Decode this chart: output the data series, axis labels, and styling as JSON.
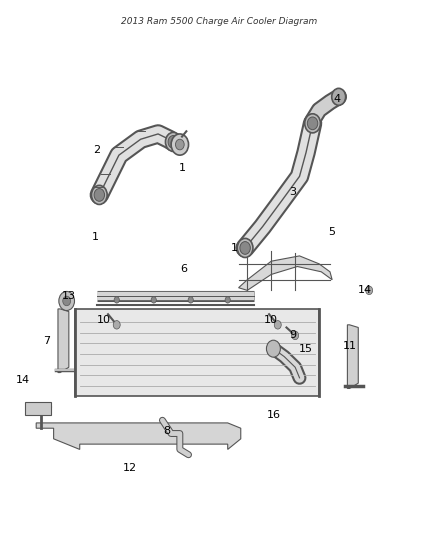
{
  "title": "2013 Ram 5500 Charge Air Cooler Diagram",
  "bg_color": "#ffffff",
  "line_color": "#555555",
  "label_color": "#000000",
  "fig_width": 4.38,
  "fig_height": 5.33,
  "dpi": 100,
  "labels": {
    "1a": [
      0.415,
      0.685,
      "1"
    ],
    "1b": [
      0.215,
      0.555,
      "1"
    ],
    "1c": [
      0.535,
      0.535,
      "1"
    ],
    "2": [
      0.22,
      0.72,
      "2"
    ],
    "3": [
      0.67,
      0.64,
      "3"
    ],
    "4": [
      0.77,
      0.815,
      "4"
    ],
    "5": [
      0.76,
      0.565,
      "5"
    ],
    "6": [
      0.42,
      0.495,
      "6"
    ],
    "7": [
      0.105,
      0.36,
      "7"
    ],
    "8": [
      0.38,
      0.19,
      "8"
    ],
    "9": [
      0.67,
      0.37,
      "9"
    ],
    "10a": [
      0.235,
      0.4,
      "10"
    ],
    "10b": [
      0.62,
      0.4,
      "10"
    ],
    "11": [
      0.8,
      0.35,
      "11"
    ],
    "12": [
      0.295,
      0.12,
      "12"
    ],
    "13": [
      0.155,
      0.445,
      "13"
    ],
    "14a": [
      0.05,
      0.285,
      "14"
    ],
    "14b": [
      0.835,
      0.455,
      "14"
    ],
    "15": [
      0.7,
      0.345,
      "15"
    ],
    "16": [
      0.625,
      0.22,
      "16"
    ]
  }
}
